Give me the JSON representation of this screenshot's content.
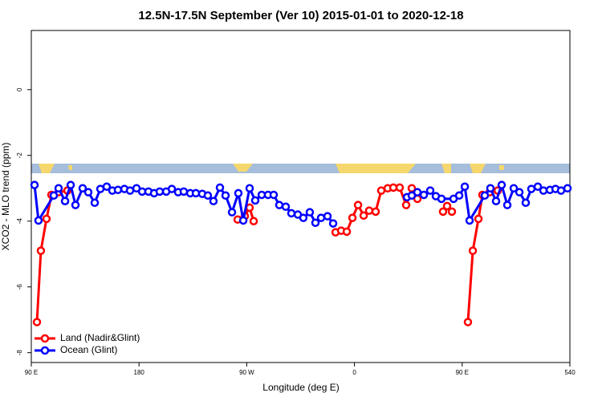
{
  "chart_data": {
    "type": "line",
    "title": "12.5N-17.5N September (Ver 10)   2015-01-01 to 2020-12-18",
    "x_label": "Longitude (deg E)",
    "y_label": "XCO2 - MLO trend (ppm)",
    "xlim": [
      90,
      540
    ],
    "xticks": [
      {
        "value": 90,
        "label": "90 E"
      },
      180,
      {
        "value": 270,
        "label": "90 W"
      },
      {
        "value": 360,
        "label": "0"
      },
      {
        "value": 450,
        "label": "90 E"
      },
      540
    ],
    "ylim": [
      -8.3,
      1.8
    ],
    "yticks": [
      0,
      -2,
      -4,
      -6,
      -8
    ],
    "legend": "bottom-left",
    "series": [
      {
        "name": "Land (Nadir&Glint)",
        "color": "#ff0000",
        "x": [
          94.7,
          98.0,
          102.7,
          106.8,
          112.8,
          120.2,
          200,
          262.4,
          268.4,
          272.4,
          275.8,
          340,
          344.2,
          348.9,
          353.6,
          358.3,
          363.0,
          367.7,
          372.3,
          377.7,
          382.4,
          387.8,
          392.5,
          397.8,
          403.2,
          407.9,
          412.6,
          425,
          434.0,
          437.4,
          441.4,
          450,
          454.8,
          458.9,
          463.6,
          466.9,
          473.0,
          479.7
        ],
        "values": [
          -7.07,
          -4.9,
          -3.93,
          -3.2,
          -3.12,
          -3.07,
          null,
          -3.95,
          -3.85,
          -3.59,
          -4.0,
          null,
          -4.34,
          -4.29,
          -4.32,
          -3.9,
          -3.51,
          -3.83,
          -3.68,
          -3.71,
          -3.07,
          -3.0,
          -2.98,
          -2.98,
          -3.51,
          -3.0,
          -3.32,
          null,
          -3.71,
          -3.54,
          -3.71,
          null,
          -7.07,
          -4.9,
          -3.93,
          -3.2,
          -3.12,
          -3.07
        ]
      },
      {
        "name": "Ocean (Glint)",
        "color": "#0000ff",
        "x": [
          92.7,
          96.0,
          108.8,
          112.8,
          118.2,
          122.9,
          126.9,
          132.9,
          137.6,
          143.0,
          147.7,
          153.0,
          157.7,
          162.4,
          167.8,
          172.5,
          177.9,
          182.6,
          187.9,
          192.6,
          197.3,
          202.7,
          207.4,
          212.7,
          217.4,
          222.8,
          227.5,
          232.8,
          237.5,
          242.2,
          247.6,
          252.3,
          257.7,
          263.0,
          267.1,
          272.4,
          277.1,
          282.5,
          287.8,
          292.5,
          297.2,
          302.6,
          307.3,
          312.7,
          317.3,
          322.7,
          327.4,
          332.1,
          337.5,
          342.2,
          380,
          403.9,
          407.9,
          412.6,
          418.0,
          423.3,
          428.0,
          432.7,
          442.8,
          447.5,
          452.2,
          456.2,
          468.9,
          473.6,
          478.3,
          483.0,
          487.7,
          493.1,
          497.8,
          503.1,
          507.8,
          513.2,
          517.9,
          523.3,
          528.0,
          532.6,
          538.0
        ],
        "values": [
          -2.9,
          -3.98,
          -3.22,
          -3.0,
          -3.39,
          -2.9,
          -3.51,
          -3.0,
          -3.12,
          -3.44,
          -3.02,
          -2.95,
          -3.07,
          -3.05,
          -3.02,
          -3.07,
          -3.0,
          -3.1,
          -3.1,
          -3.15,
          -3.1,
          -3.1,
          -3.02,
          -3.12,
          -3.1,
          -3.15,
          -3.15,
          -3.17,
          -3.22,
          -3.39,
          -2.98,
          -3.22,
          -3.73,
          -3.15,
          -3.98,
          -3.0,
          -3.37,
          -3.2,
          -3.2,
          -3.2,
          -3.51,
          -3.56,
          -3.76,
          -3.8,
          -3.9,
          -3.73,
          -4.05,
          -3.9,
          -3.85,
          -4.07,
          null,
          -3.27,
          -3.22,
          -3.12,
          -3.2,
          -3.07,
          -3.24,
          -3.32,
          -3.32,
          -3.22,
          -2.95,
          -3.98,
          -3.22,
          -3.0,
          -3.39,
          -2.9,
          -3.51,
          -3.0,
          -3.12,
          -3.44,
          -3.02,
          -2.95,
          -3.07,
          -3.05,
          -3.02,
          -3.07,
          -3.0
        ]
      }
    ]
  }
}
